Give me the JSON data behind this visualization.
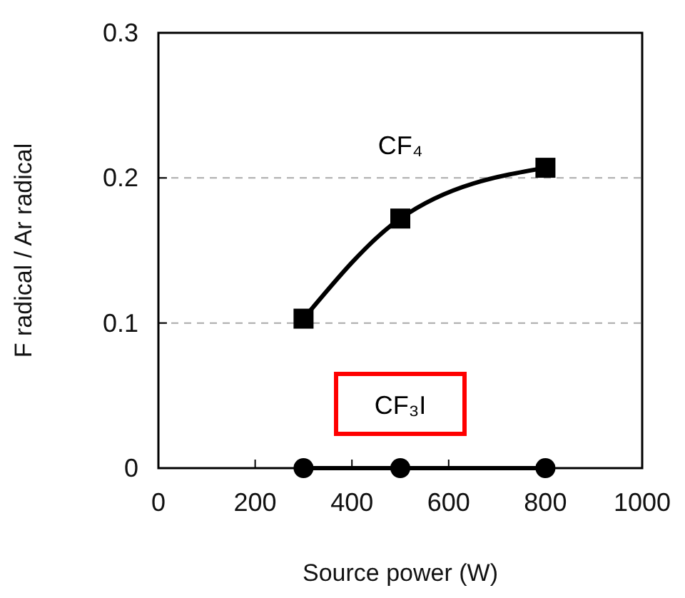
{
  "chart_data": {
    "type": "line",
    "xlabel": "Source power (W)",
    "ylabel": "F radical / Ar radical",
    "xlim": [
      0,
      1000
    ],
    "xticks": [
      0,
      200,
      400,
      600,
      800,
      1000
    ],
    "ylim": [
      0,
      0.3
    ],
    "yticks": [
      0,
      0.1,
      0.2,
      0.3
    ],
    "grid": "y",
    "series": [
      {
        "name": "CF₄",
        "color": "#000000",
        "marker": "square",
        "x": [
          300,
          500,
          800
        ],
        "values": [
          0.103,
          0.172,
          0.207
        ]
      },
      {
        "name": "CF₃I",
        "color": "#000000",
        "marker": "circle",
        "x": [
          300,
          500,
          800
        ],
        "values": [
          0,
          0,
          0
        ]
      }
    ]
  }
}
